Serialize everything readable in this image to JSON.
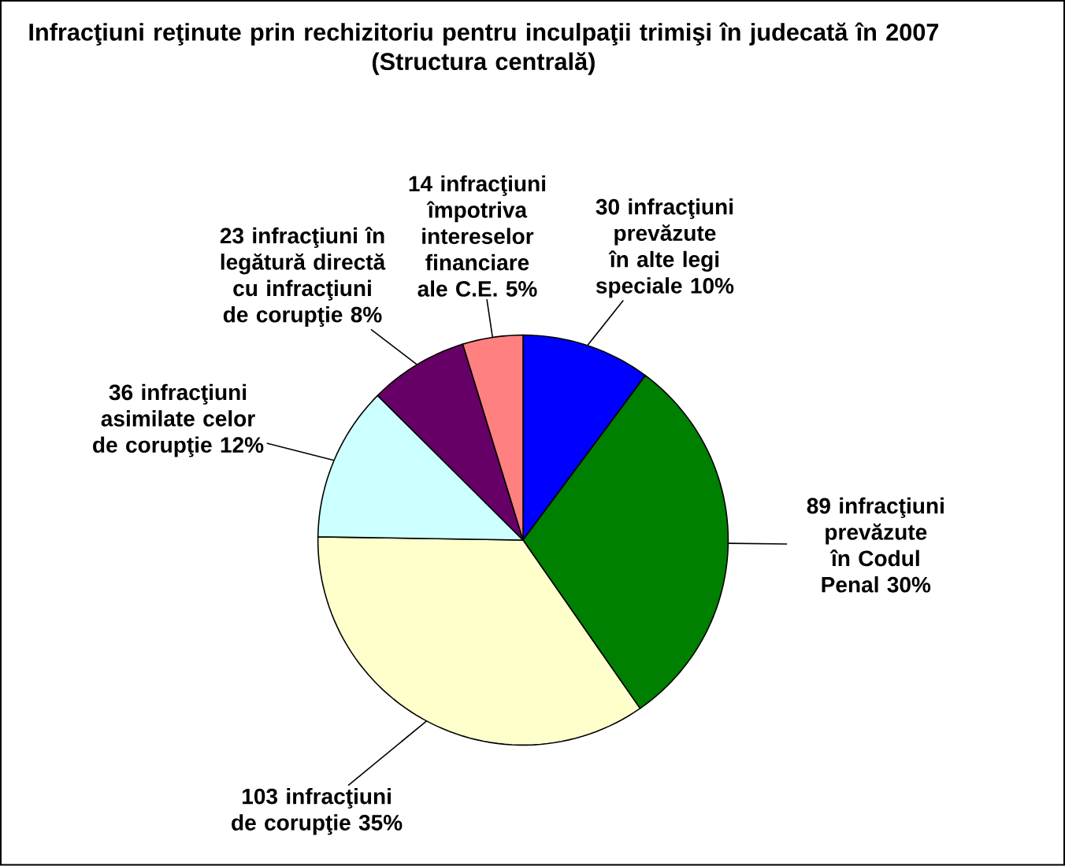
{
  "chart_data": {
    "type": "pie",
    "title": "Infracţiuni reţinute prin rechizitoriu pentru inculpaţii trimişi în judecată în 2007",
    "subtitle": "(Structura centrală)",
    "categories": [
      "30 infracţiuni prevăzute în alte legi speciale 10%",
      "89 infracţiuni prevăzute în Codul Penal 30%",
      "103 infracţiuni de corupţie 35%",
      "36 infracţiuni asimilate celor de corupţie 12%",
      "23 infracţiuni în legătură directă cu infracţiuni de corupţie 8%",
      "14 infracţiuni împotriva intereselor financiare ale C.E. 5%"
    ],
    "values": [
      30,
      89,
      103,
      36,
      23,
      14
    ],
    "colors": [
      "#0000ff",
      "#008000",
      "#ffffcc",
      "#ccffff",
      "#660066",
      "#ff8080"
    ]
  }
}
